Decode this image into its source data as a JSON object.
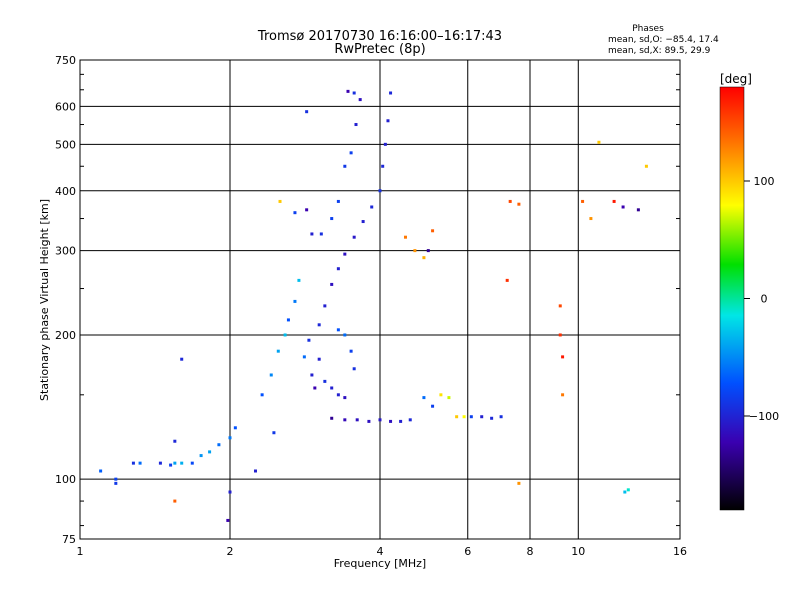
{
  "chart_data": {
    "type": "scatter",
    "title": "Tromsø 20170730 16:16:00–16:17:43",
    "subtitle": "RwPretec (8p)",
    "xlabel": "Frequency [MHz]",
    "ylabel": "Stationary phase Virtual Height [km]",
    "x_scale": "log2",
    "y_scale": "log",
    "xlim": [
      1,
      16
    ],
    "ylim": [
      75,
      750
    ],
    "x_ticks": [
      1,
      2,
      4,
      6,
      8,
      10,
      16
    ],
    "x_tick_labels": [
      "1",
      "2",
      "4",
      "6",
      "8",
      "10",
      "16"
    ],
    "y_ticks": [
      75,
      100,
      200,
      300,
      400,
      500,
      600,
      750
    ],
    "y_tick_labels": [
      "75",
      "100",
      "200",
      "300",
      "400",
      "500",
      "600",
      "750"
    ],
    "grid": true,
    "phases_info": {
      "heading": "Phases",
      "line_o": "mean, sd,O: −85.4, 17.4",
      "line_x": "mean, sd,X: 89.5, 29.9"
    },
    "colorbar": {
      "label": "[deg]",
      "min": -180,
      "max": 180,
      "ticks": [
        100,
        0,
        -100
      ],
      "tick_labels": [
        "100",
        "0",
        "−100"
      ]
    },
    "series": [
      {
        "points": [
          [
            1.1,
            104,
            -65
          ],
          [
            1.18,
            100,
            -80
          ],
          [
            1.18,
            98,
            -85
          ],
          [
            1.28,
            108,
            -90
          ],
          [
            1.32,
            108,
            -60
          ],
          [
            1.45,
            108,
            -95
          ],
          [
            1.52,
            107,
            -80
          ],
          [
            1.55,
            108,
            -40
          ],
          [
            1.6,
            108,
            -35
          ],
          [
            1.68,
            108,
            -75
          ],
          [
            1.75,
            112,
            -45
          ],
          [
            1.82,
            114,
            -40
          ],
          [
            1.9,
            118,
            -60
          ],
          [
            2.0,
            122,
            -55
          ],
          [
            2.05,
            128,
            -70
          ],
          [
            1.55,
            120,
            -95
          ],
          [
            1.6,
            178,
            -95
          ],
          [
            1.55,
            90,
            140
          ],
          [
            2.0,
            94,
            -100
          ],
          [
            1.98,
            82,
            -120
          ],
          [
            2.25,
            104,
            -100
          ],
          [
            2.32,
            150,
            -70
          ],
          [
            2.42,
            165,
            -50
          ],
          [
            2.5,
            185,
            -40
          ],
          [
            2.58,
            200,
            -30
          ],
          [
            2.62,
            215,
            -70
          ],
          [
            2.7,
            235,
            -55
          ],
          [
            2.75,
            260,
            -30
          ],
          [
            2.82,
            180,
            -60
          ],
          [
            2.88,
            195,
            -90
          ],
          [
            2.92,
            165,
            -100
          ],
          [
            2.96,
            155,
            -120
          ],
          [
            3.02,
            210,
            -95
          ],
          [
            3.1,
            230,
            -100
          ],
          [
            3.2,
            255,
            -110
          ],
          [
            3.3,
            275,
            -100
          ],
          [
            3.4,
            295,
            -110
          ],
          [
            3.55,
            320,
            -105
          ],
          [
            3.7,
            345,
            -100
          ],
          [
            3.85,
            370,
            -95
          ],
          [
            4.0,
            400,
            -90
          ],
          [
            4.05,
            450,
            -95
          ],
          [
            4.1,
            500,
            -100
          ],
          [
            4.15,
            560,
            -100
          ],
          [
            4.2,
            640,
            -95
          ],
          [
            3.2,
            350,
            -80
          ],
          [
            3.3,
            380,
            -80
          ],
          [
            3.4,
            450,
            -85
          ],
          [
            3.5,
            480,
            -80
          ],
          [
            3.58,
            550,
            -100
          ],
          [
            3.65,
            620,
            -110
          ],
          [
            3.3,
            205,
            -70
          ],
          [
            3.4,
            200,
            -60
          ],
          [
            3.5,
            185,
            -80
          ],
          [
            3.55,
            170,
            -90
          ],
          [
            3.1,
            160,
            -90
          ],
          [
            3.2,
            155,
            -100
          ],
          [
            3.3,
            150,
            -100
          ],
          [
            3.4,
            148,
            -110
          ],
          [
            3.2,
            134,
            -130
          ],
          [
            3.4,
            133,
            -115
          ],
          [
            3.6,
            133,
            -110
          ],
          [
            3.8,
            132,
            -110
          ],
          [
            4.0,
            133,
            -105
          ],
          [
            4.2,
            132,
            -110
          ],
          [
            4.4,
            132,
            -100
          ],
          [
            4.6,
            133,
            -95
          ],
          [
            4.9,
            148,
            -60
          ],
          [
            5.1,
            142,
            -80
          ],
          [
            5.3,
            150,
            90
          ],
          [
            5.5,
            148,
            70
          ],
          [
            5.7,
            135,
            100
          ],
          [
            5.9,
            135,
            80
          ],
          [
            6.1,
            135,
            -80
          ],
          [
            6.4,
            135,
            -100
          ],
          [
            6.7,
            134,
            -95
          ],
          [
            7.0,
            135,
            -90
          ],
          [
            4.5,
            320,
            130
          ],
          [
            4.7,
            300,
            120
          ],
          [
            4.9,
            290,
            110
          ],
          [
            5.0,
            300,
            -130
          ],
          [
            5.1,
            330,
            140
          ],
          [
            7.3,
            380,
            150
          ],
          [
            7.6,
            375,
            140
          ],
          [
            7.2,
            260,
            160
          ],
          [
            7.6,
            98,
            120
          ],
          [
            9.2,
            230,
            150
          ],
          [
            9.2,
            200,
            160
          ],
          [
            9.3,
            180,
            170
          ],
          [
            9.3,
            150,
            130
          ],
          [
            10.2,
            380,
            140
          ],
          [
            10.6,
            350,
            120
          ],
          [
            11.0,
            505,
            100
          ],
          [
            11.8,
            380,
            170
          ],
          [
            12.3,
            370,
            -120
          ],
          [
            13.2,
            365,
            -130
          ],
          [
            13.7,
            450,
            100
          ],
          [
            12.6,
            95,
            -10
          ],
          [
            12.4,
            94,
            -30
          ],
          [
            2.52,
            380,
            100
          ],
          [
            2.7,
            360,
            -80
          ],
          [
            2.85,
            365,
            -120
          ],
          [
            2.92,
            325,
            -100
          ],
          [
            3.05,
            325,
            -90
          ],
          [
            2.85,
            585,
            -90
          ],
          [
            3.45,
            645,
            -120
          ],
          [
            3.55,
            640,
            -90
          ],
          [
            3.02,
            178,
            -100
          ],
          [
            2.45,
            125,
            -85
          ]
        ]
      }
    ]
  }
}
